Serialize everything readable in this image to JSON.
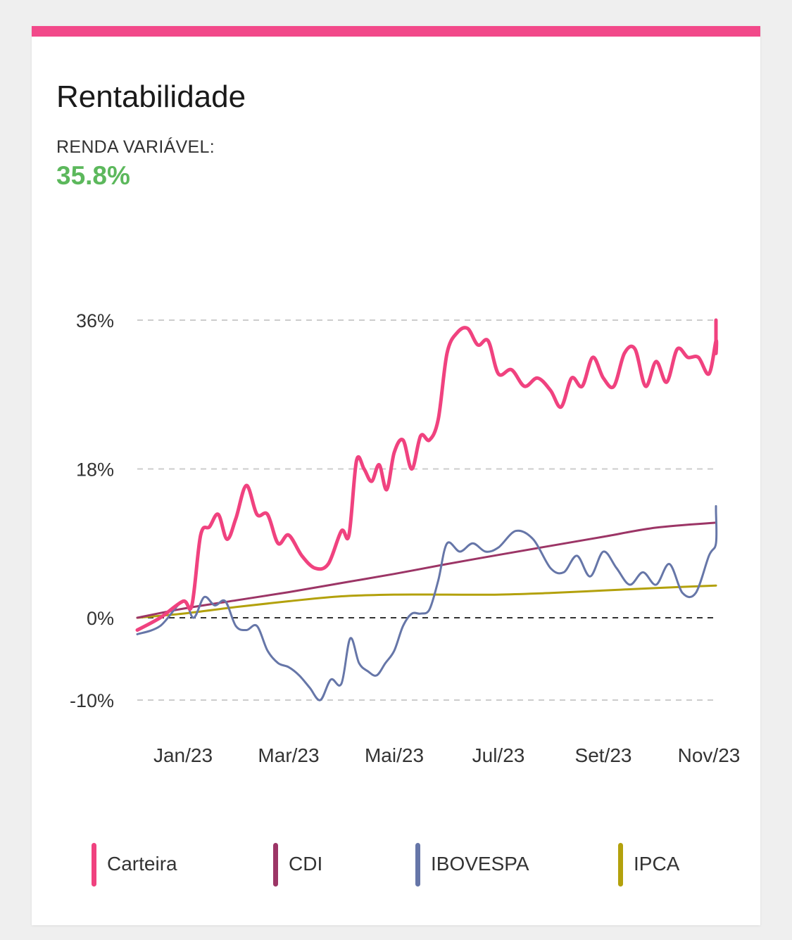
{
  "card": {
    "title": "Rentabilidade",
    "kpi_label": "RENDA VARIÁVEL:",
    "kpi_value": "35.8%"
  },
  "colors": {
    "accent": "#f2498a",
    "kpi": "#5cb85c",
    "carteira": "#f0427f",
    "cdi": "#9c3566",
    "ibovespa": "#6676a8",
    "ipca": "#b3a10c",
    "grid": "#cccccc",
    "zero_line": "#333333",
    "tick_text": "#333333"
  },
  "chart_data": {
    "type": "line",
    "title": "",
    "xlabel": "",
    "ylabel": "",
    "ylim": [
      -10,
      36
    ],
    "x_ticks": [
      "Jan/23",
      "Mar/23",
      "Mai/23",
      "Jul/23",
      "Set/23",
      "Nov/23"
    ],
    "y_ticks": [
      {
        "value": 36,
        "label": "36%"
      },
      {
        "value": 18,
        "label": "18%"
      },
      {
        "value": 0,
        "label": "0%"
      },
      {
        "value": -10,
        "label": "-10%"
      }
    ],
    "grid": "horizontal dashed",
    "legend_position": "bottom",
    "series": [
      {
        "name": "Carteira",
        "color_key": "carteira",
        "x": [
          "Dec/22",
          "Dec/22",
          "Jan/23",
          "Jan/23",
          "Jan/23",
          "Jan/23",
          "Jan/23",
          "Jan/23",
          "Feb/23",
          "Feb/23",
          "Feb/23",
          "Feb/23",
          "Feb/23",
          "Mar/23",
          "Mar/23",
          "Mar/23",
          "Mar/23",
          "Apr/23",
          "Apr/23",
          "Apr/23",
          "Apr/23",
          "Apr/23",
          "Apr/23",
          "Apr/23",
          "May/23",
          "May/23",
          "May/23",
          "May/23",
          "May/23",
          "May/23",
          "Jun/23",
          "Jun/23",
          "Jun/23",
          "Jun/23",
          "Jun/23",
          "Jul/23",
          "Jul/23",
          "Jul/23",
          "Jul/23",
          "Aug/23",
          "Aug/23",
          "Aug/23",
          "Aug/23",
          "Aug/23",
          "Sep/23",
          "Sep/23",
          "Sep/23",
          "Sep/23",
          "Sep/23",
          "Oct/23",
          "Oct/23",
          "Oct/23",
          "Oct/23",
          "Oct/23",
          "Nov/23",
          "Nov/23",
          "Nov/23",
          "Nov/23",
          "Nov/23"
        ],
        "y": [
          -1.5,
          0.0,
          2.0,
          1.5,
          10.0,
          11.0,
          12.5,
          9.5,
          12.0,
          16.0,
          12.5,
          12.5,
          9.0,
          10.0,
          7.5,
          6.0,
          6.5,
          10.5,
          10.0,
          19.0,
          18.0,
          16.5,
          18.5,
          15.5,
          20.0,
          21.5,
          18.0,
          22.0,
          21.5,
          24.0,
          32.0,
          34.5,
          35.0,
          33.0,
          33.5,
          29.5,
          30.0,
          28.0,
          29.0,
          27.5,
          25.5,
          29.0,
          28.0,
          31.5,
          29.0,
          28.0,
          32.0,
          32.5,
          28.0,
          31.0,
          28.5,
          32.5,
          31.5,
          31.5,
          29.5,
          33.5,
          32.0,
          35.5,
          36.0
        ]
      },
      {
        "name": "CDI",
        "color_key": "cdi",
        "x": [
          "Dec/22",
          "Jan/23",
          "Feb/23",
          "Mar/23",
          "Apr/23",
          "May/23",
          "Jun/23",
          "Jul/23",
          "Aug/23",
          "Sep/23",
          "Oct/23",
          "Nov/23"
        ],
        "y": [
          0.0,
          1.1,
          2.1,
          3.1,
          4.2,
          5.3,
          6.5,
          7.6,
          8.7,
          9.8,
          10.9,
          11.5
        ]
      },
      {
        "name": "IBOVESPA",
        "color_key": "ibovespa",
        "x": [
          "Dec/22",
          "Dec/22",
          "Jan/23",
          "Jan/23",
          "Jan/23",
          "Jan/23",
          "Jan/23",
          "Feb/23",
          "Feb/23",
          "Feb/23",
          "Feb/23",
          "Feb/23",
          "Mar/23",
          "Mar/23",
          "Mar/23",
          "Mar/23",
          "Mar/23",
          "Apr/23",
          "Apr/23",
          "Apr/23",
          "Apr/23",
          "Apr/23",
          "Apr/23",
          "May/23",
          "May/23",
          "May/23",
          "May/23",
          "May/23",
          "May/23",
          "Jun/23",
          "Jun/23",
          "Jun/23",
          "Jun/23",
          "Jul/23",
          "Jul/23",
          "Jul/23",
          "Aug/23",
          "Aug/23",
          "Aug/23",
          "Aug/23",
          "Sep/23",
          "Sep/23",
          "Sep/23",
          "Sep/23",
          "Oct/23",
          "Oct/23",
          "Oct/23",
          "Oct/23",
          "Nov/23",
          "Nov/23",
          "Nov/23",
          "Nov/23"
        ],
        "y": [
          -2.0,
          -1.0,
          2.0,
          0.0,
          2.5,
          1.5,
          2.0,
          -1.0,
          -1.5,
          -1.0,
          -4.0,
          -5.5,
          -6.0,
          -7.0,
          -8.5,
          -10.0,
          -7.5,
          -8.0,
          -2.5,
          -5.5,
          -6.5,
          -7.0,
          -5.5,
          -4.0,
          -1.0,
          0.5,
          0.5,
          1.0,
          4.5,
          9.0,
          8.0,
          9.0,
          8.0,
          8.5,
          10.5,
          9.5,
          6.0,
          5.5,
          7.5,
          5.0,
          8.0,
          6.0,
          4.0,
          5.5,
          4.0,
          6.5,
          3.0,
          3.0,
          7.5,
          9.0,
          13.0,
          13.5
        ]
      },
      {
        "name": "IPCA",
        "color_key": "ipca",
        "x": [
          "Dec/22",
          "Jan/23",
          "Feb/23",
          "Mar/23",
          "Apr/23",
          "May/23",
          "Jun/23",
          "Jul/23",
          "Aug/23",
          "Sep/23",
          "Oct/23",
          "Nov/23"
        ],
        "y": [
          0.0,
          0.5,
          1.3,
          2.0,
          2.6,
          2.8,
          2.8,
          2.8,
          3.0,
          3.3,
          3.6,
          3.9
        ]
      }
    ]
  },
  "legend": [
    {
      "label": "Carteira",
      "color_key": "carteira"
    },
    {
      "label": "CDI",
      "color_key": "cdi"
    },
    {
      "label": "IBOVESPA",
      "color_key": "ibovespa"
    },
    {
      "label": "IPCA",
      "color_key": "ipca"
    }
  ]
}
